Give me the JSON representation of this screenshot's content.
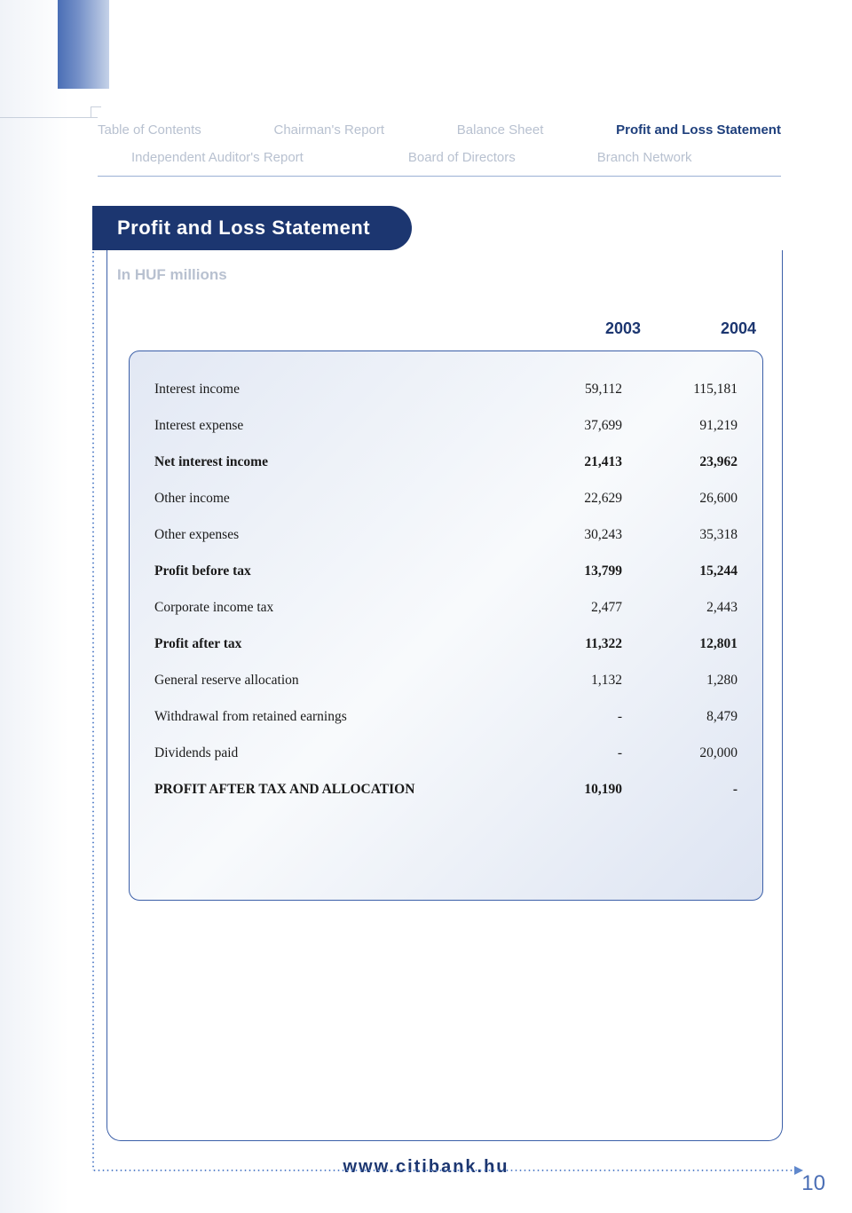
{
  "nav": {
    "row1": {
      "toc": "Table of Contents",
      "chairman": "Chairman's Report",
      "balance": "Balance Sheet",
      "profit_loss": "Profit and Loss Statement"
    },
    "row2": {
      "auditor": "Independent Auditor's Report",
      "directors": "Board of Directors",
      "branch": "Branch Network"
    }
  },
  "section": {
    "title": "Profit and Loss Statement",
    "subtitle": "In HUF millions"
  },
  "table": {
    "year1": "2003",
    "year2": "2004",
    "rows": [
      {
        "label": "Interest income",
        "v1": "59,112",
        "v2": "115,181",
        "bold": false
      },
      {
        "label": "Interest expense",
        "v1": "37,699",
        "v2": "91,219",
        "bold": false
      },
      {
        "label": "Net interest income",
        "v1": "21,413",
        "v2": "23,962",
        "bold": true
      },
      {
        "label": "Other income",
        "v1": "22,629",
        "v2": "26,600",
        "bold": false
      },
      {
        "label": "Other expenses",
        "v1": "30,243",
        "v2": "35,318",
        "bold": false
      },
      {
        "label": "Profit before tax",
        "v1": "13,799",
        "v2": "15,244",
        "bold": true
      },
      {
        "label": "Corporate income tax",
        "v1": "2,477",
        "v2": "2,443",
        "bold": false
      },
      {
        "label": "Profit after tax",
        "v1": "11,322",
        "v2": "12,801",
        "bold": true
      },
      {
        "label": "General reserve allocation",
        "v1": "1,132",
        "v2": "1,280",
        "bold": false
      },
      {
        "label": "Withdrawal from retained earnings",
        "v1": "-",
        "v2": "8,479",
        "bold": false
      },
      {
        "label": "Dividends paid",
        "v1": "-",
        "v2": "20,000",
        "bold": false
      },
      {
        "label": "PROFIT AFTER TAX AND ALLOCATION",
        "v1": "10,190",
        "v2": "-",
        "bold": true
      }
    ]
  },
  "footer": {
    "url": "www.citibank.hu",
    "page": "10"
  },
  "colors": {
    "brand_dark": "#1c3670",
    "brand_mid": "#4a6eb5",
    "nav_inactive": "#b8c1d0",
    "border": "#3b5fa8",
    "dots": "#6088cc"
  }
}
